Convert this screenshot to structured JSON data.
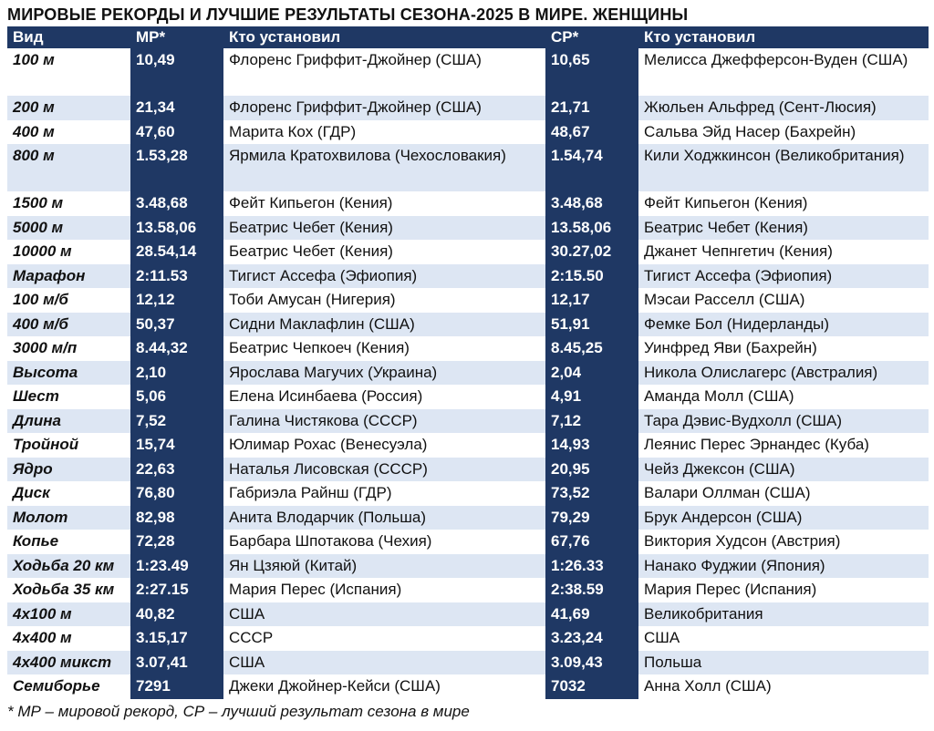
{
  "title": "МИРОВЫЕ РЕКОРДЫ И ЛУЧШИЕ РЕЗУЛЬТАТЫ СЕЗОНА-2025 В МИРЕ. ЖЕНЩИНЫ",
  "headers": [
    "Вид",
    "МР*",
    "Кто установил",
    "СР*",
    "Кто установил"
  ],
  "rows": [
    [
      "100 м",
      "10,49",
      "Флоренс Гриффит-Джойнер (США)",
      "10,65",
      "Мелисса Джефферсон-Вуден (США)"
    ],
    [
      "200 м",
      "21,34",
      "Флоренс Гриффит-Джойнер (США)",
      "21,71",
      "Жюльен Альфред (Сент-Люсия)"
    ],
    [
      "400 м",
      "47,60",
      "Марита Кох (ГДР)",
      "48,67",
      "Сальва Эйд Насер (Бахрейн)"
    ],
    [
      "800 м",
      "1.53,28",
      "Ярмила Кратохвилова (Чехословакия)",
      "1.54,74",
      "Кили Ходжкинсон (Великобритания)"
    ],
    [
      "1500 м",
      "3.48,68",
      "Фейт Кипьегон (Кения)",
      "3.48,68",
      "Фейт Кипьегон (Кения)"
    ],
    [
      "5000 м",
      "13.58,06",
      "Беатрис Чебет (Кения)",
      "13.58,06",
      "Беатрис Чебет (Кения)"
    ],
    [
      "10000 м",
      "28.54,14",
      "Беатрис Чебет (Кения)",
      "30.27,02",
      "Джанет Чепнгетич (Кения)"
    ],
    [
      "Марафон",
      "2:11.53",
      "Тигист Ассефа (Эфиопия)",
      "2:15.50",
      "Тигист Ассефа (Эфиопия)"
    ],
    [
      "100 м/б",
      "12,12",
      "Тоби Амусан (Нигерия)",
      "12,17",
      "Мэсаи Расселл (США)"
    ],
    [
      "400 м/б",
      "50,37",
      "Сидни Маклафлин (США)",
      "51,91",
      "Фемке Бол (Нидерланды)"
    ],
    [
      "3000 м/п",
      "8.44,32",
      "Беатрис Чепкоеч (Кения)",
      "8.45,25",
      "Уинфред Яви (Бахрейн)"
    ],
    [
      "Высота",
      "2,10",
      "Ярослава Магучих (Украина)",
      "2,04",
      "Никола Олислагерс (Австралия)"
    ],
    [
      "Шест",
      "5,06",
      "Елена Исинбаева (Россия)",
      "4,91",
      "Аманда Молл (США)"
    ],
    [
      "Длина",
      "7,52",
      "Галина Чистякова (СССР)",
      "7,12",
      "Тара Дэвис-Вудхолл (США)"
    ],
    [
      "Тройной",
      "15,74",
      "Юлимар Рохас (Венесуэла)",
      "14,93",
      "Леянис Перес Эрнандес (Куба)"
    ],
    [
      "Ядро",
      "22,63",
      "Наталья Лисовская (СССР)",
      "20,95",
      "Чейз Джексон (США)"
    ],
    [
      "Диск",
      "76,80",
      "Габриэла Райнш (ГДР)",
      "73,52",
      "Валари Оллман (США)"
    ],
    [
      "Молот",
      "82,98",
      "Анита Влодарчик (Польша)",
      "79,29",
      "Брук Андерсон (США)"
    ],
    [
      "Копье",
      "72,28",
      "Барбара Шпотакова (Чехия)",
      "67,76",
      "Виктория Худсон (Австрия)"
    ],
    [
      "Ходьба 20 км",
      "1:23.49",
      "Ян Цзяюй (Китай)",
      "1:26.33",
      "Нанако Фуджии (Япония)"
    ],
    [
      "Ходьба 35 км",
      "2:27.15",
      "Мария Перес (Испания)",
      "2:38.59",
      "Мария Перес (Испания)"
    ],
    [
      "4х100 м",
      "40,82",
      "США",
      "41,69",
      "Великобритания"
    ],
    [
      "4х400 м",
      "3.15,17",
      "СССР",
      "3.23,24",
      "США"
    ],
    [
      "4х400 микст",
      "3.07,41",
      "США",
      "3.09,43",
      "Польша"
    ],
    [
      "Семиборье",
      "7291",
      "Джеки Джойнер-Кейси (США)",
      "7032",
      "Анна Холл (США)"
    ]
  ],
  "footnote": "* МР – мировой рекорд, СР – лучший результат сезона в мире",
  "colors": {
    "header_bg": "#1f3864",
    "stripe_bg": "#dde6f3"
  }
}
